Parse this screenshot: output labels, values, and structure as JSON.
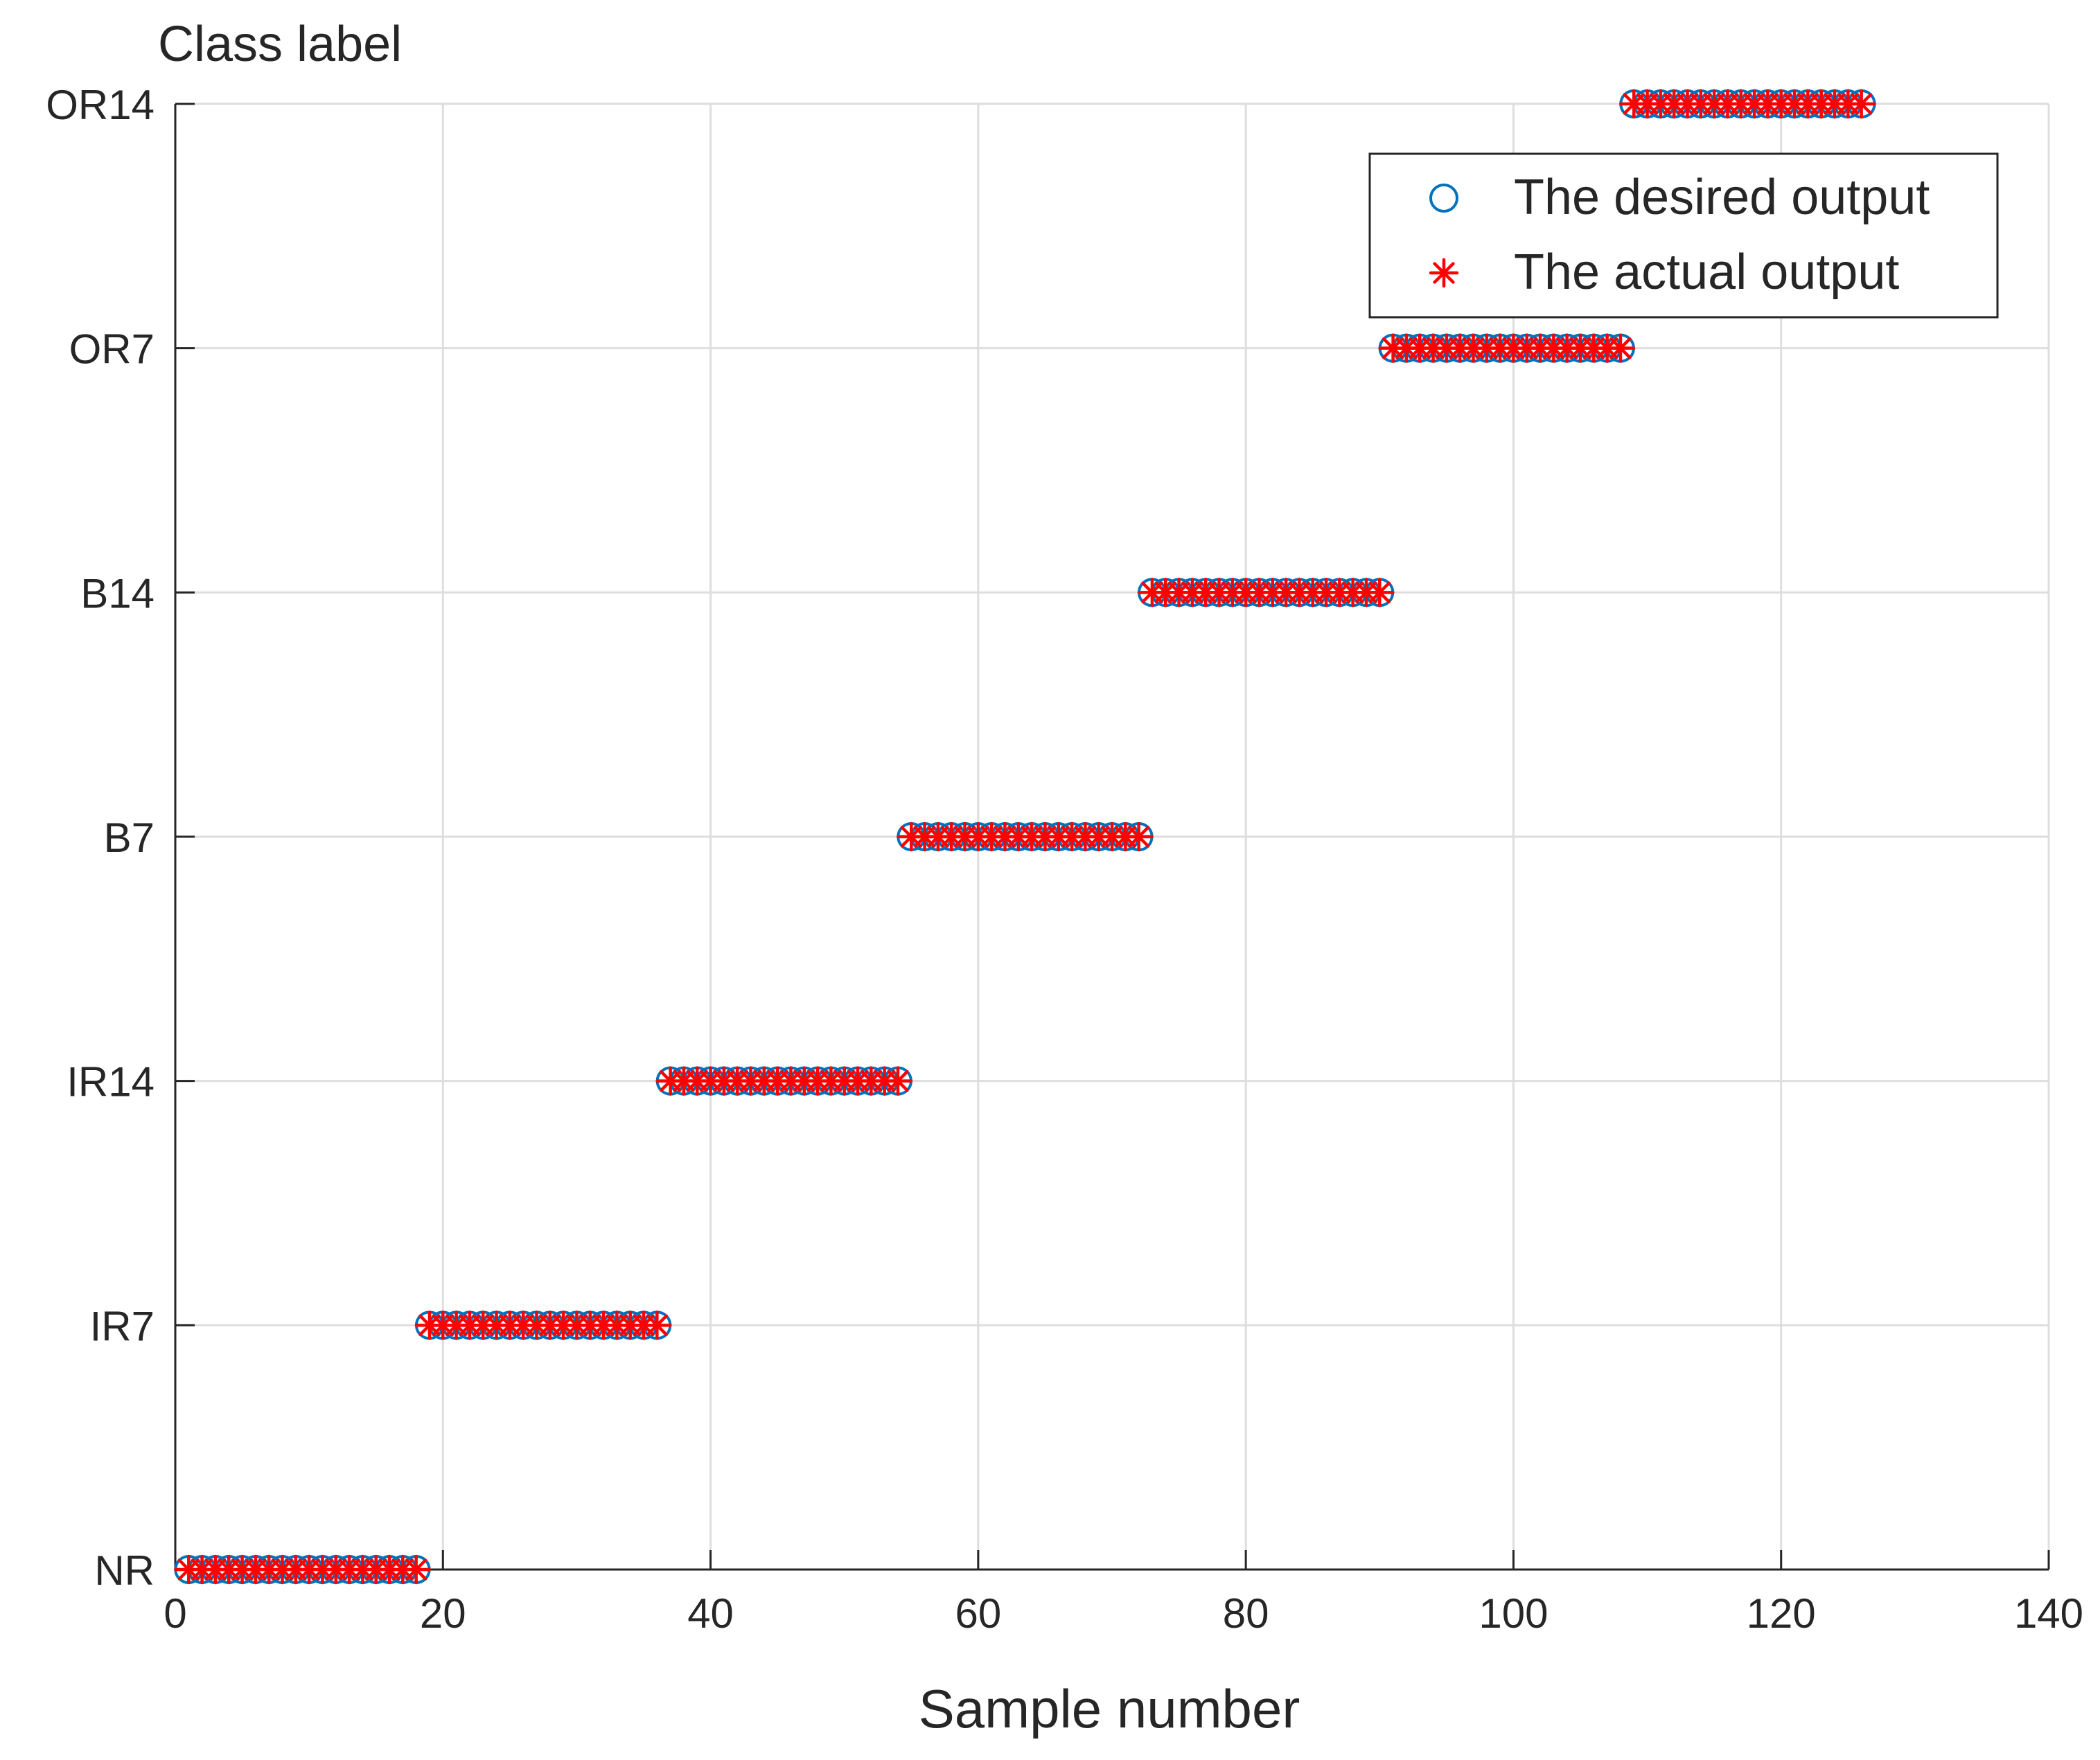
{
  "chart_data": {
    "type": "scatter",
    "title": "",
    "ylabel": "Class label",
    "xlabel": "Sample number",
    "xlim": [
      0,
      140
    ],
    "x_ticks": [
      0,
      20,
      40,
      60,
      80,
      100,
      120,
      140
    ],
    "y_categories": [
      "NR",
      "IR7",
      "IR14",
      "B7",
      "B14",
      "OR7",
      "OR14"
    ],
    "grid": true,
    "legend_position": "top-right",
    "series": [
      {
        "name": "The desired output",
        "marker": "circle",
        "color": "#0072BD",
        "groups": [
          {
            "class": "NR",
            "x_start": 1,
            "x_end": 18
          },
          {
            "class": "IR7",
            "x_start": 19,
            "x_end": 36
          },
          {
            "class": "IR14",
            "x_start": 37,
            "x_end": 54
          },
          {
            "class": "B7",
            "x_start": 55,
            "x_end": 72
          },
          {
            "class": "B14",
            "x_start": 73,
            "x_end": 90
          },
          {
            "class": "OR7",
            "x_start": 91,
            "x_end": 108
          },
          {
            "class": "OR14",
            "x_start": 109,
            "x_end": 126
          }
        ]
      },
      {
        "name": "The actual output",
        "marker": "asterisk",
        "color": "#FF0000",
        "groups": [
          {
            "class": "NR",
            "x_start": 1,
            "x_end": 18
          },
          {
            "class": "IR7",
            "x_start": 19,
            "x_end": 36
          },
          {
            "class": "IR14",
            "x_start": 37,
            "x_end": 54
          },
          {
            "class": "B7",
            "x_start": 55,
            "x_end": 72
          },
          {
            "class": "B14",
            "x_start": 73,
            "x_end": 90
          },
          {
            "class": "OR7",
            "x_start": 91,
            "x_end": 108
          },
          {
            "class": "OR14",
            "x_start": 109,
            "x_end": 126
          }
        ]
      }
    ]
  }
}
